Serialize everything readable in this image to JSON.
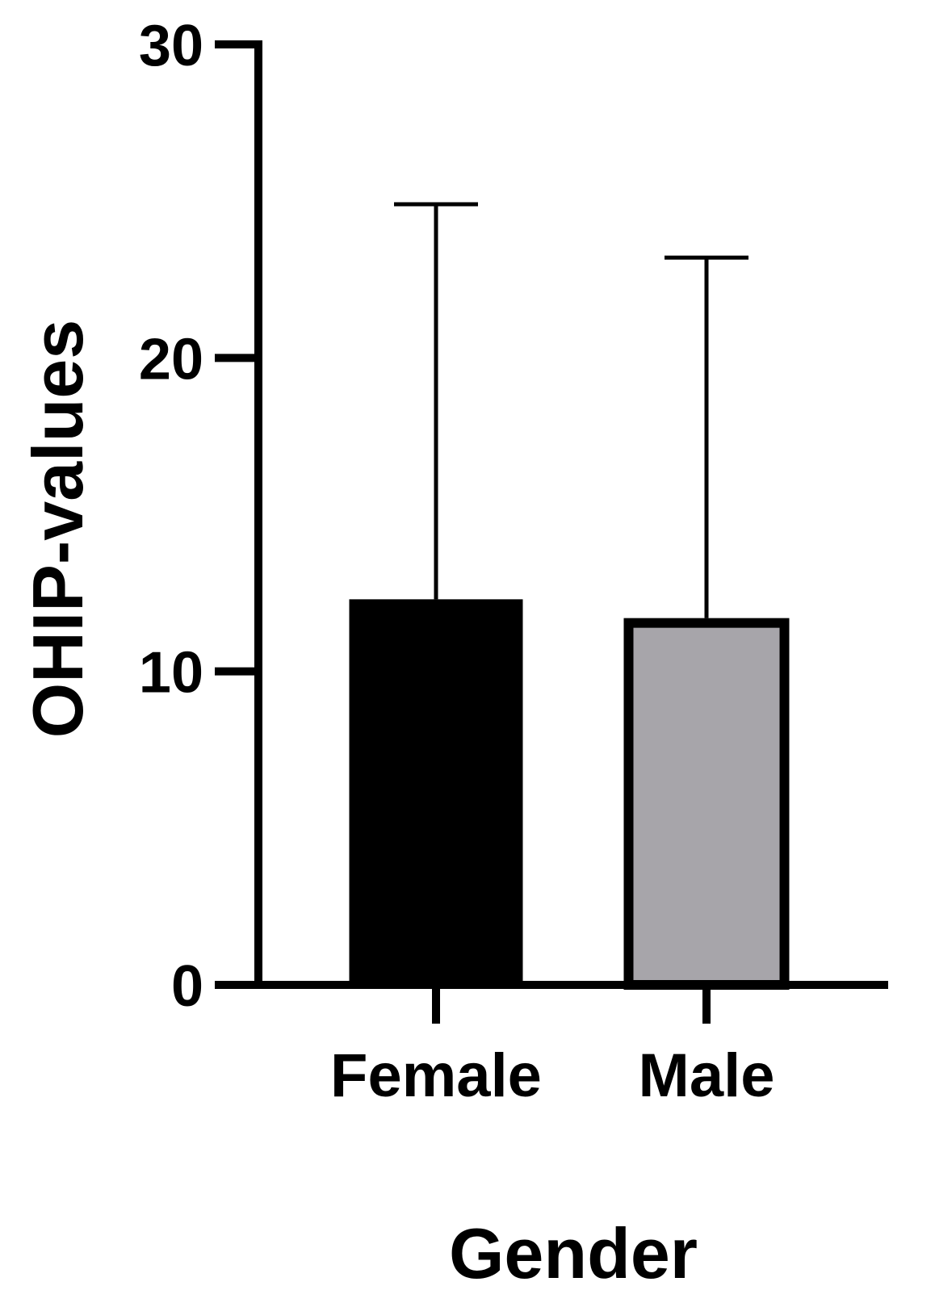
{
  "chart_data": {
    "type": "bar",
    "title": "",
    "xlabel": "Gender",
    "ylabel": "OHIP-values",
    "categories": [
      "Female",
      "Male"
    ],
    "values": [
      12.3,
      11.7
    ],
    "error_upper": [
      24.9,
      23.2
    ],
    "ylim": [
      0,
      30
    ],
    "yticks": [
      "0",
      "10",
      "20",
      "30"
    ],
    "grid": false,
    "colors": {
      "fill": [
        "#000000",
        "#a7a5aa"
      ],
      "stroke": "#000000"
    }
  }
}
